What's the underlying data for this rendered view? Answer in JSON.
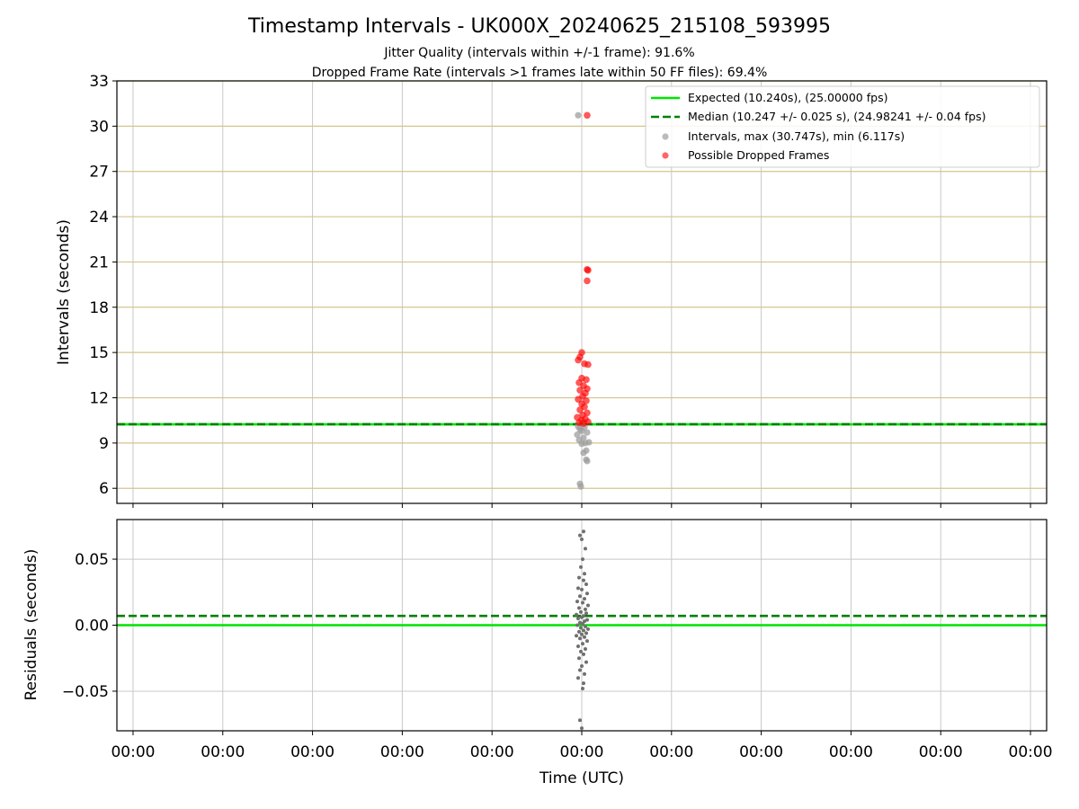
{
  "figure": {
    "title": "Timestamp Intervals - UK000X_20240625_215108_593995",
    "subtitle_1": "Jitter Quality (intervals within +/-1 frame): 91.6%",
    "subtitle_2": "Dropped Frame Rate (intervals >1 frames late within 50 FF files): 69.4%"
  },
  "colors": {
    "expected_line": "#00e400",
    "median_line": "#008000",
    "intervals_points": "#9e9e9e",
    "dropped_points": "#ff0000",
    "residual_points": "#707070",
    "top_y_grid": "#d4c48e",
    "grid": "#c8c8c8"
  },
  "chart_data": [
    {
      "type": "scatter",
      "ylabel": "Intervals (seconds)",
      "ylim": [
        5,
        33
      ],
      "yticks": [
        6,
        9,
        12,
        15,
        18,
        21,
        24,
        27,
        30,
        33
      ],
      "x_axis": "time",
      "grid": true,
      "legend_position": "top-right",
      "reference_lines": [
        {
          "name": "Expected (10.240s), (25.00000 fps)",
          "y": 10.24,
          "style": "solid"
        },
        {
          "name": "Median (10.247 +/- 0.025 s), (24.98241 +/- 0.04 fps)",
          "y": 10.247,
          "style": "dashed"
        }
      ],
      "series": [
        {
          "name": "Intervals, max (30.747s), min (6.117s)",
          "points": [
            [
              -0.04,
              30.72
            ],
            [
              -0.02,
              6.3
            ],
            [
              -0.01,
              6.12
            ],
            [
              0.04,
              9.0
            ],
            [
              -0.03,
              9.2
            ],
            [
              0.02,
              9.35
            ],
            [
              -0.05,
              9.55
            ],
            [
              0.06,
              9.7
            ],
            [
              0.0,
              9.8
            ],
            [
              -0.02,
              9.9
            ],
            [
              0.05,
              8.5
            ],
            [
              0.02,
              8.35
            ],
            [
              0.06,
              7.8
            ],
            [
              0.05,
              7.9
            ],
            [
              0.0,
              8.95
            ],
            [
              0.08,
              9.05
            ],
            [
              0.03,
              10.05
            ],
            [
              -0.04,
              10.1
            ]
          ]
        },
        {
          "name": "Possible Dropped Frames",
          "points": [
            [
              0.06,
              30.72
            ],
            [
              0.06,
              20.5
            ],
            [
              0.07,
              20.45
            ],
            [
              0.06,
              19.75
            ],
            [
              0.0,
              15.0
            ],
            [
              -0.02,
              14.7
            ],
            [
              -0.04,
              14.5
            ],
            [
              0.03,
              14.25
            ],
            [
              0.07,
              14.2
            ],
            [
              0.0,
              13.3
            ],
            [
              0.05,
              13.2
            ],
            [
              -0.03,
              13.0
            ],
            [
              0.02,
              12.8
            ],
            [
              0.06,
              12.6
            ],
            [
              -0.02,
              12.5
            ],
            [
              0.04,
              12.3
            ],
            [
              0.01,
              12.1
            ],
            [
              -0.04,
              11.9
            ],
            [
              0.05,
              11.8
            ],
            [
              0.0,
              11.6
            ],
            [
              0.03,
              11.4
            ],
            [
              -0.02,
              11.2
            ],
            [
              0.06,
              11.0
            ],
            [
              0.01,
              10.85
            ],
            [
              -0.05,
              10.7
            ],
            [
              0.04,
              10.6
            ],
            [
              0.0,
              10.5
            ],
            [
              0.07,
              10.4
            ],
            [
              -0.03,
              10.35
            ],
            [
              0.02,
              10.3
            ]
          ]
        }
      ]
    },
    {
      "type": "scatter",
      "xlabel": "Time (UTC)",
      "ylabel": "Residuals (seconds)",
      "ylim": [
        -0.08,
        0.08
      ],
      "yticks": [
        -0.05,
        0.0,
        0.05
      ],
      "ytick_labels": [
        "−0.05",
        "0.00",
        "0.05"
      ],
      "xticks": [
        -5,
        -4,
        -3,
        -2,
        -1,
        0,
        1,
        2,
        3,
        4,
        5
      ],
      "xtick_labels": [
        "00:00",
        "00:00",
        "00:00",
        "00:00",
        "00:00",
        "00:00",
        "00:00",
        "00:00",
        "00:00",
        "00:00",
        "00:00"
      ],
      "xlim": [
        -5.18,
        5.18
      ],
      "grid": true,
      "reference_lines": [
        {
          "y": 0.0,
          "style": "solid"
        },
        {
          "y": 0.007,
          "style": "dashed"
        }
      ],
      "series": [
        {
          "name": "Residuals",
          "points": [
            [
              -0.02,
              0.068
            ],
            [
              0.02,
              0.071
            ],
            [
              0.0,
              0.065
            ],
            [
              0.04,
              0.058
            ],
            [
              0.01,
              0.05
            ],
            [
              -0.01,
              0.044
            ],
            [
              0.03,
              0.039
            ],
            [
              -0.03,
              0.036
            ],
            [
              0.02,
              0.034
            ],
            [
              0.05,
              0.031
            ],
            [
              -0.04,
              0.028
            ],
            [
              0.0,
              0.027
            ],
            [
              0.06,
              0.024
            ],
            [
              -0.02,
              0.022
            ],
            [
              0.03,
              0.02
            ],
            [
              -0.05,
              0.018
            ],
            [
              0.01,
              0.017
            ],
            [
              0.07,
              0.015
            ],
            [
              -0.03,
              0.013
            ],
            [
              0.04,
              0.012
            ],
            [
              -0.01,
              0.01
            ],
            [
              0.05,
              0.009
            ],
            [
              -0.06,
              0.008
            ],
            [
              0.02,
              0.007
            ],
            [
              0.0,
              0.006
            ],
            [
              -0.04,
              0.005
            ],
            [
              0.06,
              0.004
            ],
            [
              0.03,
              0.003
            ],
            [
              -0.02,
              0.002
            ],
            [
              0.01,
              0.001
            ],
            [
              -0.05,
              0.0
            ],
            [
              0.04,
              -0.001
            ],
            [
              -0.01,
              -0.002
            ],
            [
              0.07,
              -0.003
            ],
            [
              0.02,
              -0.004
            ],
            [
              -0.03,
              -0.005
            ],
            [
              0.05,
              -0.006
            ],
            [
              0.0,
              -0.007
            ],
            [
              -0.06,
              -0.008
            ],
            [
              0.03,
              -0.009
            ],
            [
              -0.02,
              -0.01
            ],
            [
              0.06,
              -0.012
            ],
            [
              0.01,
              -0.014
            ],
            [
              -0.04,
              -0.016
            ],
            [
              0.04,
              -0.018
            ],
            [
              -0.01,
              -0.02
            ],
            [
              0.02,
              -0.022
            ],
            [
              -0.03,
              -0.025
            ],
            [
              0.05,
              -0.028
            ],
            [
              0.0,
              -0.031
            ],
            [
              -0.02,
              -0.034
            ],
            [
              0.03,
              -0.037
            ],
            [
              -0.04,
              -0.04
            ],
            [
              0.02,
              -0.044
            ],
            [
              0.01,
              -0.048
            ],
            [
              -0.02,
              -0.072
            ],
            [
              0.0,
              -0.078
            ]
          ]
        }
      ]
    }
  ]
}
